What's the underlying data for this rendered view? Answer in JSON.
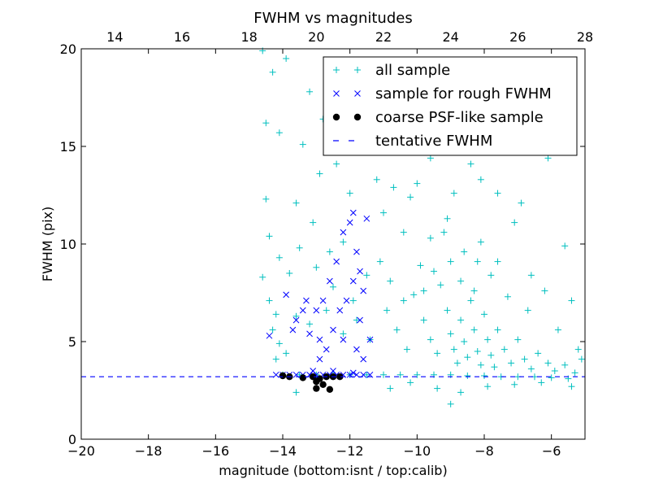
{
  "chart_data": {
    "type": "scatter",
    "title": "FWHM vs magnitudes",
    "xlabel": "magnitude (bottom:isnt / top:calib)",
    "ylabel": "FWHM (pix)",
    "xlim": [
      -20,
      -5
    ],
    "ylim": [
      0,
      20
    ],
    "top_xlim": [
      13,
      28
    ],
    "xticks": [
      -20,
      -18,
      -16,
      -14,
      -12,
      -10,
      -8,
      -6
    ],
    "xtick_labels": [
      "−20",
      "−18",
      "−16",
      "−14",
      "−12",
      "−10",
      "−8",
      "−6"
    ],
    "yticks": [
      0,
      5,
      10,
      15,
      20
    ],
    "ytick_labels": [
      "0",
      "5",
      "10",
      "15",
      "20"
    ],
    "top_xticks": [
      14,
      16,
      18,
      20,
      22,
      24,
      26,
      28
    ],
    "top_xtick_labels": [
      "14",
      "16",
      "18",
      "20",
      "22",
      "24",
      "26",
      "28"
    ],
    "grid": false,
    "legend_position": "top-right",
    "colors": {
      "all": "#00bfbf",
      "rough": "#0000ff",
      "coarse": "#000000",
      "tentative": "#0000ff"
    },
    "series": [
      {
        "name": "all sample",
        "marker": "plus",
        "points": [
          [
            -14.6,
            19.9
          ],
          [
            -14.3,
            18.8
          ],
          [
            -13.9,
            19.5
          ],
          [
            -13.2,
            17.8
          ],
          [
            -12.8,
            16.4
          ],
          [
            -14.5,
            16.2
          ],
          [
            -14.1,
            15.7
          ],
          [
            -13.4,
            15.1
          ],
          [
            -12.4,
            14.1
          ],
          [
            -11.2,
            13.3
          ],
          [
            -10.2,
            12.4
          ],
          [
            -9.6,
            14.4
          ],
          [
            -8.4,
            14.1
          ],
          [
            -7.6,
            12.6
          ],
          [
            -6.1,
            14.4
          ],
          [
            -9.1,
            16.6
          ],
          [
            -8.9,
            17.6
          ],
          [
            -11.6,
            16.5
          ],
          [
            -12.1,
            17.6
          ],
          [
            -10.6,
            18.1
          ],
          [
            -14.5,
            12.3
          ],
          [
            -14.4,
            10.4
          ],
          [
            -14.1,
            9.3
          ],
          [
            -13.8,
            8.5
          ],
          [
            -14.6,
            8.3
          ],
          [
            -13.1,
            11.1
          ],
          [
            -12.6,
            9.6
          ],
          [
            -12.2,
            10.1
          ],
          [
            -11.5,
            8.4
          ],
          [
            -11.1,
            9.1
          ],
          [
            -10.4,
            10.6
          ],
          [
            -9.9,
            8.9
          ],
          [
            -9.6,
            10.3
          ],
          [
            -9.1,
            11.3
          ],
          [
            -8.6,
            9.6
          ],
          [
            -8.1,
            10.1
          ],
          [
            -7.6,
            9.1
          ],
          [
            -7.1,
            11.1
          ],
          [
            -6.6,
            8.4
          ],
          [
            -6.2,
            7.6
          ],
          [
            -5.6,
            9.9
          ],
          [
            -5.4,
            7.1
          ],
          [
            -14.4,
            7.1
          ],
          [
            -14.2,
            6.4
          ],
          [
            -14.3,
            5.6
          ],
          [
            -14.1,
            4.9
          ],
          [
            -13.9,
            4.4
          ],
          [
            -14.2,
            4.1
          ],
          [
            -13.6,
            6.3
          ],
          [
            -13.2,
            5.9
          ],
          [
            -12.7,
            6.6
          ],
          [
            -12.2,
            5.4
          ],
          [
            -11.8,
            6.1
          ],
          [
            -11.4,
            5.1
          ],
          [
            -10.9,
            6.6
          ],
          [
            -10.6,
            5.6
          ],
          [
            -10.3,
            4.6
          ],
          [
            -10.1,
            7.4
          ],
          [
            -9.8,
            6.1
          ],
          [
            -9.6,
            5.1
          ],
          [
            -9.4,
            4.4
          ],
          [
            -9.3,
            7.9
          ],
          [
            -9.1,
            6.6
          ],
          [
            -9.0,
            5.4
          ],
          [
            -8.9,
            4.6
          ],
          [
            -8.8,
            3.9
          ],
          [
            -8.7,
            6.1
          ],
          [
            -8.6,
            5.0
          ],
          [
            -8.5,
            4.2
          ],
          [
            -8.4,
            7.1
          ],
          [
            -8.3,
            5.6
          ],
          [
            -8.2,
            4.5
          ],
          [
            -8.1,
            3.8
          ],
          [
            -8.0,
            6.4
          ],
          [
            -7.9,
            5.1
          ],
          [
            -7.8,
            4.3
          ],
          [
            -7.7,
            3.7
          ],
          [
            -7.6,
            5.6
          ],
          [
            -7.4,
            4.6
          ],
          [
            -7.2,
            3.9
          ],
          [
            -7.0,
            5.1
          ],
          [
            -6.8,
            4.1
          ],
          [
            -6.6,
            3.6
          ],
          [
            -6.4,
            4.4
          ],
          [
            -6.1,
            3.9
          ],
          [
            -5.9,
            3.5
          ],
          [
            -5.6,
            3.8
          ],
          [
            -5.3,
            3.4
          ],
          [
            -5.1,
            4.1
          ],
          [
            -9.5,
            8.6
          ],
          [
            -9.0,
            9.1
          ],
          [
            -8.7,
            8.1
          ],
          [
            -8.3,
            7.6
          ],
          [
            -9.8,
            7.6
          ],
          [
            -10.4,
            7.1
          ],
          [
            -10.8,
            8.1
          ],
          [
            -11.9,
            7.1
          ],
          [
            -12.5,
            7.8
          ],
          [
            -13.0,
            8.8
          ],
          [
            -13.5,
            9.8
          ],
          [
            -13.6,
            12.1
          ],
          [
            -12.9,
            13.6
          ],
          [
            -12.0,
            12.6
          ],
          [
            -11.0,
            11.6
          ],
          [
            -10.0,
            13.1
          ],
          [
            -8.9,
            12.6
          ],
          [
            -8.1,
            13.3
          ],
          [
            -6.9,
            12.1
          ],
          [
            -14.0,
            3.3
          ],
          [
            -13.5,
            3.3
          ],
          [
            -13.0,
            3.3
          ],
          [
            -12.5,
            3.3
          ],
          [
            -12.0,
            3.3
          ],
          [
            -11.5,
            3.3
          ],
          [
            -11.0,
            3.3
          ],
          [
            -10.5,
            3.3
          ],
          [
            -10.0,
            3.3
          ],
          [
            -9.5,
            3.3
          ],
          [
            -9.0,
            3.3
          ],
          [
            -8.5,
            3.25
          ],
          [
            -8.0,
            3.25
          ],
          [
            -7.5,
            3.2
          ],
          [
            -7.0,
            3.2
          ],
          [
            -6.5,
            3.2
          ],
          [
            -6.0,
            3.15
          ],
          [
            -5.5,
            3.1
          ],
          [
            -10.2,
            2.9
          ],
          [
            -9.4,
            2.6
          ],
          [
            -8.7,
            2.4
          ],
          [
            -7.9,
            2.7
          ],
          [
            -7.1,
            2.8
          ],
          [
            -6.3,
            2.9
          ],
          [
            -5.4,
            2.7
          ],
          [
            -9.0,
            1.8
          ],
          [
            -10.8,
            2.6
          ],
          [
            -13.6,
            2.4
          ],
          [
            -5.2,
            4.6
          ],
          [
            -5.8,
            5.6
          ],
          [
            -6.7,
            6.6
          ],
          [
            -7.3,
            7.3
          ],
          [
            -7.8,
            8.4
          ],
          [
            -8.2,
            9.1
          ],
          [
            -9.2,
            10.6
          ],
          [
            -10.7,
            12.9
          ]
        ]
      },
      {
        "name": "sample for rough FWHM",
        "marker": "x",
        "points": [
          [
            -14.4,
            5.3
          ],
          [
            -13.9,
            7.4
          ],
          [
            -13.6,
            6.1
          ],
          [
            -13.3,
            7.1
          ],
          [
            -13.0,
            6.6
          ],
          [
            -12.8,
            7.1
          ],
          [
            -12.9,
            5.1
          ],
          [
            -12.6,
            8.1
          ],
          [
            -12.4,
            9.1
          ],
          [
            -12.2,
            10.6
          ],
          [
            -12.0,
            11.1
          ],
          [
            -11.9,
            11.6
          ],
          [
            -11.8,
            9.6
          ],
          [
            -11.7,
            8.6
          ],
          [
            -11.9,
            8.1
          ],
          [
            -11.6,
            7.6
          ],
          [
            -11.5,
            11.3
          ],
          [
            -12.1,
            7.1
          ],
          [
            -12.3,
            6.6
          ],
          [
            -12.5,
            5.6
          ],
          [
            -12.2,
            5.1
          ],
          [
            -11.8,
            4.6
          ],
          [
            -11.6,
            4.1
          ],
          [
            -12.7,
            4.6
          ],
          [
            -12.9,
            4.1
          ],
          [
            -13.2,
            5.4
          ],
          [
            -13.4,
            6.6
          ],
          [
            -13.7,
            5.6
          ],
          [
            -11.4,
            5.1
          ],
          [
            -11.7,
            6.1
          ],
          [
            -14.2,
            3.3
          ],
          [
            -14.0,
            3.3
          ],
          [
            -13.8,
            3.3
          ],
          [
            -13.6,
            3.3
          ],
          [
            -13.4,
            3.3
          ],
          [
            -13.2,
            3.3
          ],
          [
            -13.0,
            3.3
          ],
          [
            -12.8,
            3.3
          ],
          [
            -12.6,
            3.3
          ],
          [
            -12.4,
            3.3
          ],
          [
            -12.2,
            3.3
          ],
          [
            -12.0,
            3.3
          ],
          [
            -11.8,
            3.3
          ],
          [
            -11.6,
            3.3
          ],
          [
            -11.4,
            3.3
          ],
          [
            -13.1,
            3.5
          ],
          [
            -12.5,
            3.5
          ],
          [
            -11.9,
            3.4
          ]
        ]
      },
      {
        "name": "coarse PSF-like sample",
        "marker": "circle",
        "points": [
          [
            -14.0,
            3.25
          ],
          [
            -13.8,
            3.2
          ],
          [
            -13.4,
            3.15
          ],
          [
            -13.1,
            3.2
          ],
          [
            -12.9,
            3.1
          ],
          [
            -12.7,
            3.2
          ],
          [
            -12.5,
            3.2
          ],
          [
            -13.0,
            2.95
          ],
          [
            -12.8,
            2.8
          ],
          [
            -13.0,
            2.6
          ],
          [
            -12.6,
            2.55
          ],
          [
            -12.3,
            3.2
          ]
        ]
      },
      {
        "name": "tentative FWHM",
        "marker": "dashed-line",
        "y": 3.2
      }
    ]
  }
}
